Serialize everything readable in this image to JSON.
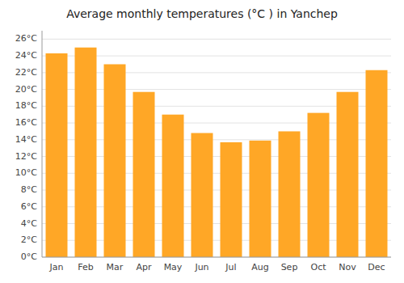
{
  "chart_data": {
    "type": "bar",
    "title": "Average monthly temperatures (°C ) in Yanchep",
    "categories": [
      "Jan",
      "Feb",
      "Mar",
      "Apr",
      "May",
      "Jun",
      "Jul",
      "Aug",
      "Sep",
      "Oct",
      "Nov",
      "Dec"
    ],
    "values": [
      24.3,
      25.0,
      23.0,
      19.7,
      17.0,
      14.8,
      13.7,
      13.9,
      15.0,
      17.2,
      19.7,
      22.3
    ],
    "color": "#FFA726",
    "ylim": [
      0,
      27
    ],
    "yticks": [
      {
        "value": 0,
        "label": "0°C"
      },
      {
        "value": 2,
        "label": "2°C"
      },
      {
        "value": 4,
        "label": "4°C"
      },
      {
        "value": 6,
        "label": "6°C"
      },
      {
        "value": 8,
        "label": "8°C"
      },
      {
        "value": 10,
        "label": "10°C"
      },
      {
        "value": 12,
        "label": "12°C"
      },
      {
        "value": 14,
        "label": "14°C"
      },
      {
        "value": 16,
        "label": "16°C"
      },
      {
        "value": 18,
        "label": "18°C"
      },
      {
        "value": 20,
        "label": "20°C"
      },
      {
        "value": 22,
        "label": "22°C"
      },
      {
        "value": 24,
        "label": "24°C"
      },
      {
        "value": 26,
        "label": "26°C"
      }
    ],
    "grid": true
  }
}
